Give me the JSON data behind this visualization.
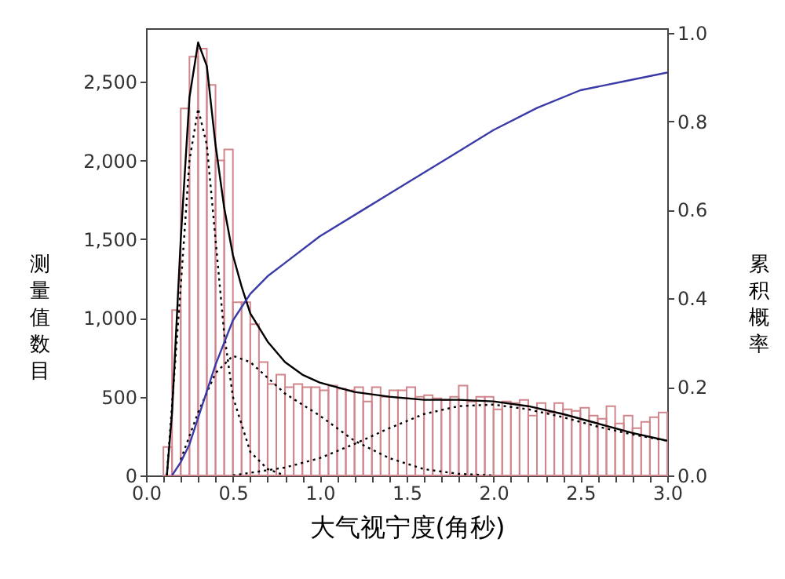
{
  "chart_data": {
    "type": "histogram",
    "xlabel": "大气视宁度(角秒)",
    "ylabel": "测量值数目",
    "y2label": "累积概率",
    "color": "#d0868c",
    "bins": [
      0.1,
      0.15,
      0.2,
      0.25,
      0.3,
      0.35,
      0.4,
      0.45,
      0.5,
      0.55,
      0.6,
      0.65,
      0.7,
      0.75,
      0.8,
      0.85,
      0.9,
      0.95,
      1.0,
      1.05,
      1.1,
      1.15,
      1.2,
      1.25,
      1.3,
      1.35,
      1.4,
      1.45,
      1.5,
      1.55,
      1.6,
      1.65,
      1.7,
      1.75,
      1.8,
      1.85,
      1.9,
      1.95,
      2.0,
      2.05,
      2.1,
      2.15,
      2.2,
      2.25,
      2.3,
      2.35,
      2.4,
      2.45,
      2.5,
      2.55,
      2.6,
      2.65,
      2.7,
      2.75,
      2.8,
      2.85,
      2.9,
      2.95,
      3.0
    ],
    "values": [
      180,
      1050,
      2330,
      2660,
      2710,
      2480,
      2000,
      2070,
      1100,
      1100,
      960,
      720,
      580,
      640,
      560,
      580,
      560,
      560,
      540,
      570,
      550,
      540,
      560,
      470,
      560,
      500,
      540,
      540,
      560,
      500,
      510,
      490,
      480,
      500,
      570,
      470,
      500,
      500,
      420,
      470,
      460,
      480,
      380,
      460,
      400,
      460,
      420,
      410,
      430,
      380,
      360,
      440,
      330,
      380,
      300,
      340,
      370,
      400
    ],
    "series": [
      {
        "type": "line",
        "color": "#000000",
        "line_style": "solid",
        "x": [
          0.12,
          0.15,
          0.2,
          0.25,
          0.3,
          0.35,
          0.4,
          0.45,
          0.5,
          0.55,
          0.6,
          0.7,
          0.8,
          0.9,
          1.0,
          1.2,
          1.4,
          1.6,
          1.8,
          2.0,
          2.2,
          2.4,
          2.6,
          2.8,
          3.0
        ],
        "values": [
          0,
          400,
          1500,
          2400,
          2750,
          2600,
          2100,
          1700,
          1400,
          1200,
          1030,
          850,
          720,
          640,
          590,
          530,
          500,
          480,
          480,
          470,
          440,
          390,
          330,
          270,
          220
        ]
      },
      {
        "type": "line",
        "color": "#000000",
        "line_style": "dotted",
        "x": [
          0.12,
          0.2,
          0.25,
          0.3,
          0.35,
          0.4,
          0.45,
          0.5,
          0.6,
          0.7,
          0.8
        ],
        "values": [
          0,
          1200,
          2000,
          2330,
          2100,
          1500,
          900,
          500,
          150,
          40,
          0
        ]
      },
      {
        "type": "line",
        "color": "#000000",
        "line_style": "dotted",
        "x": [
          0.2,
          0.3,
          0.4,
          0.5,
          0.6,
          0.7,
          0.8,
          1.0,
          1.2,
          1.4,
          1.6,
          1.8,
          2.0
        ],
        "values": [
          100,
          400,
          650,
          760,
          720,
          620,
          520,
          380,
          220,
          110,
          40,
          10,
          0
        ]
      },
      {
        "type": "line",
        "color": "#000000",
        "line_style": "dotted",
        "x": [
          0.5,
          0.8,
          1.0,
          1.2,
          1.4,
          1.6,
          1.8,
          2.0,
          2.2,
          2.4,
          2.6,
          2.8,
          3.0
        ],
        "values": [
          0,
          50,
          110,
          200,
          300,
          390,
          440,
          450,
          420,
          370,
          310,
          260,
          220
        ]
      },
      {
        "type": "line",
        "color": "#3a3aa8",
        "line_style": "solid",
        "axis": "y2",
        "x": [
          0.15,
          0.2,
          0.25,
          0.3,
          0.4,
          0.5,
          0.6,
          0.7,
          0.8,
          1.0,
          1.25,
          1.5,
          1.75,
          2.0,
          2.25,
          2.5,
          2.75,
          3.0
        ],
        "values": [
          0,
          0.03,
          0.07,
          0.13,
          0.25,
          0.35,
          0.41,
          0.45,
          0.48,
          0.54,
          0.6,
          0.66,
          0.72,
          0.78,
          0.83,
          0.87,
          0.89,
          0.91
        ]
      }
    ],
    "xlim": [
      0,
      3
    ],
    "xticks": [
      {
        "value": 0,
        "label": "0.0"
      },
      {
        "value": 0.1,
        "label": null
      },
      {
        "value": 0.2,
        "label": null
      },
      {
        "value": 0.3,
        "label": null
      },
      {
        "value": 0.4,
        "label": null
      },
      0.5,
      {
        "value": 0.6,
        "label": null
      },
      {
        "value": 0.7,
        "label": null
      },
      {
        "value": 0.8,
        "label": null
      },
      {
        "value": 0.9,
        "label": null
      },
      {
        "value": 1,
        "label": "1.0"
      },
      {
        "value": 1.1,
        "label": null
      },
      {
        "value": 1.2,
        "label": null
      },
      {
        "value": 1.3,
        "label": null
      },
      {
        "value": 1.4,
        "label": null
      },
      1.5,
      {
        "value": 1.6,
        "label": null
      },
      {
        "value": 1.7,
        "label": null
      },
      {
        "value": 1.8,
        "label": null
      },
      {
        "value": 1.9,
        "label": null
      },
      {
        "value": 2,
        "label": "2.0"
      },
      {
        "value": 2.1,
        "label": null
      },
      {
        "value": 2.2,
        "label": null
      },
      {
        "value": 2.3,
        "label": null
      },
      {
        "value": 2.4,
        "label": null
      },
      2.5,
      {
        "value": 2.6,
        "label": null
      },
      {
        "value": 2.7,
        "label": null
      },
      {
        "value": 2.8,
        "label": null
      },
      {
        "value": 2.9,
        "label": null
      },
      {
        "value": 3,
        "label": "3.0"
      }
    ],
    "ylim": [
      0,
      2840
    ],
    "yticks": [
      0,
      500,
      {
        "value": 1000,
        "label": "1,000"
      },
      {
        "value": 1500,
        "label": "1,500"
      },
      {
        "value": 2000,
        "label": "2,000"
      },
      {
        "value": 2500,
        "label": "2,500"
      }
    ],
    "y2lim": [
      0,
      1.01
    ],
    "y2ticks": [
      {
        "value": 0,
        "label": "0.0"
      },
      0.2,
      0.4,
      0.6,
      0.8,
      {
        "value": 1,
        "label": "1.0"
      }
    ],
    "grid": false
  }
}
